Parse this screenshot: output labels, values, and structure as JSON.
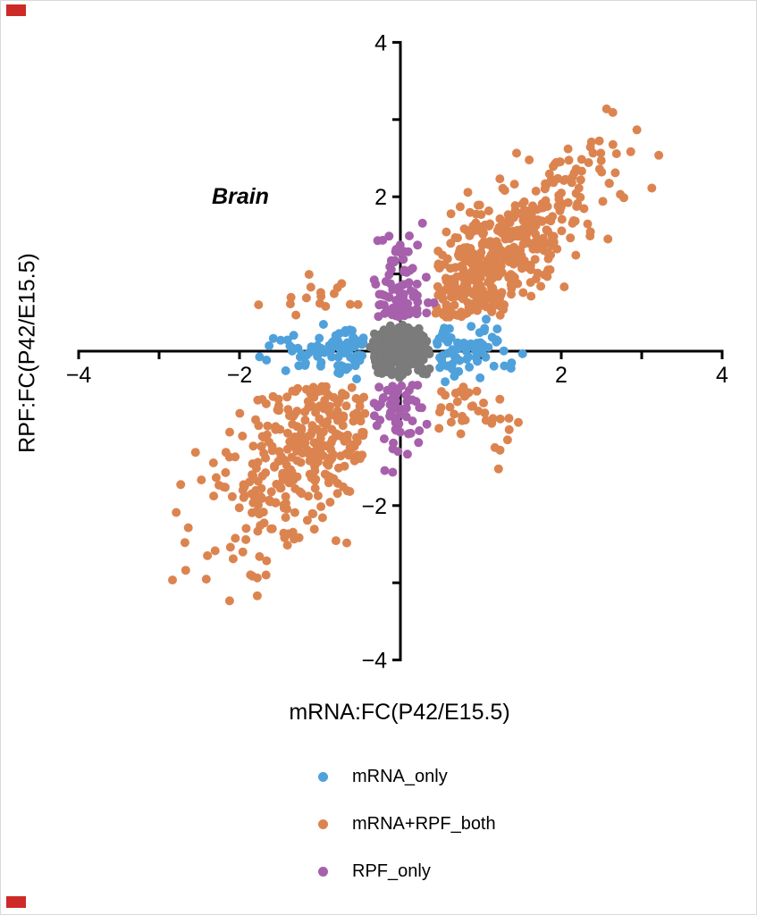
{
  "figure": {
    "title": "Brain",
    "x_label": "mRNA:FC(P42/E15.5)",
    "y_label": "RPF:FC(P42/E15.5)"
  },
  "legend": {
    "items": [
      {
        "label": "mRNA_only",
        "color": "#4FA1DB"
      },
      {
        "label": "mRNA+RPF_both",
        "color": "#DC8450"
      },
      {
        "label": "RPF_only",
        "color": "#A760AB"
      }
    ]
  },
  "chart_data": {
    "type": "scatter",
    "title": "Brain",
    "xlabel": "mRNA:FC(P42/E15.5)",
    "ylabel": "RPF:FC(P42/E15.5)",
    "xlim": [
      -4,
      4
    ],
    "ylim": [
      -4,
      4
    ],
    "grid": false,
    "legend_position": "bottom",
    "axis_color": "#000000",
    "point_radius_px": 5,
    "seed": 7,
    "x_ticks": [
      {
        "v": -4,
        "label": "−4"
      },
      {
        "v": -3
      },
      {
        "v": -2,
        "label": "−2"
      },
      {
        "v": -1
      },
      {
        "v": 1
      },
      {
        "v": 2,
        "label": "2"
      },
      {
        "v": 3
      },
      {
        "v": 4,
        "label": "4"
      }
    ],
    "y_ticks": [
      {
        "v": -4,
        "label": "−4"
      },
      {
        "v": -3
      },
      {
        "v": -2,
        "label": "−2"
      },
      {
        "v": -1
      },
      {
        "v": 1
      },
      {
        "v": 2,
        "label": "2"
      },
      {
        "v": 3
      },
      {
        "v": 4,
        "label": "4"
      }
    ],
    "series": [
      {
        "name": "mRNA+RPF_both",
        "color": "#DC8450",
        "in_legend": true,
        "clusters": [
          {
            "n": 430,
            "cx": 0.55,
            "cy": 0.55,
            "dx": 0.92,
            "dy": 0.92,
            "t": 0.92,
            "nx": 0.32,
            "ny": 0.32,
            "x0": 0.44,
            "x1": 3.3,
            "y0": 0.44,
            "y1": 3.3
          },
          {
            "n": 320,
            "cx": -0.58,
            "cy": -0.62,
            "dx": -0.88,
            "dy": -0.98,
            "t": 0.85,
            "nx": 0.4,
            "ny": 0.45,
            "x0": -2.85,
            "x1": -0.44,
            "y0": -3.35,
            "y1": -0.44
          },
          {
            "n": 38,
            "cx": 0.52,
            "cy": -0.52,
            "dx": 0.55,
            "dy": -0.28,
            "t": 0.7,
            "nx": 0.3,
            "ny": 0.24,
            "x0": 0.44,
            "x1": 1.8,
            "y0": -1.6,
            "y1": -0.44
          },
          {
            "n": 16,
            "cx": -0.55,
            "cy": 0.52,
            "dx": -0.8,
            "dy": 0.25,
            "t": 0.6,
            "nx": 0.35,
            "ny": 0.18,
            "x0": -2.3,
            "x1": -0.44,
            "y0": 0.44,
            "y1": 1.4
          }
        ]
      },
      {
        "name": "mRNA_only",
        "color": "#4FA1DB",
        "in_legend": true,
        "clusters": [
          {
            "n": 85,
            "cx": -0.44,
            "cy": 0,
            "dx": -1,
            "dy": 0,
            "t": 0.5,
            "nx": 0.07,
            "ny": 0.17,
            "x0": -2.12,
            "x1": -0.44,
            "y0": -0.42,
            "y1": 0.42
          },
          {
            "n": 70,
            "cx": 0.44,
            "cy": 0,
            "dx": 1,
            "dy": 0,
            "t": 0.46,
            "nx": 0.07,
            "ny": 0.17,
            "x0": 0.44,
            "x1": 1.72,
            "y0": -0.42,
            "y1": 0.42
          }
        ]
      },
      {
        "name": "RPF_only",
        "color": "#A760AB",
        "in_legend": true,
        "clusters": [
          {
            "n": 95,
            "cx": 0,
            "cy": 0.44,
            "dx": 0,
            "dy": 1,
            "t": 0.52,
            "nx": 0.16,
            "ny": 0.07,
            "x0": -0.42,
            "x1": 0.42,
            "y0": 0.44,
            "y1": 2.1
          },
          {
            "n": 62,
            "cx": 0,
            "cy": -0.44,
            "dx": 0,
            "dy": -1,
            "t": 0.42,
            "nx": 0.16,
            "ny": 0.07,
            "x0": -0.42,
            "x1": 0.42,
            "y0": -1.58,
            "y1": -0.44
          }
        ]
      },
      {
        "name": "not_significant_center",
        "color": "#7B7B7B",
        "in_legend": false,
        "clusters": [
          {
            "n": 250,
            "cx": 0,
            "cy": 0,
            "dx": 0,
            "dy": 0,
            "t": 0,
            "nx": 0.2,
            "ny": 0.19,
            "x0": -0.38,
            "x1": 0.38,
            "y0": -0.36,
            "y1": 0.36
          }
        ]
      }
    ]
  },
  "ui": {
    "corner_marks": [
      {
        "position": "top-left",
        "color": "#CC2B28"
      },
      {
        "position": "bottom-left",
        "color": "#CC2B28"
      }
    ]
  }
}
